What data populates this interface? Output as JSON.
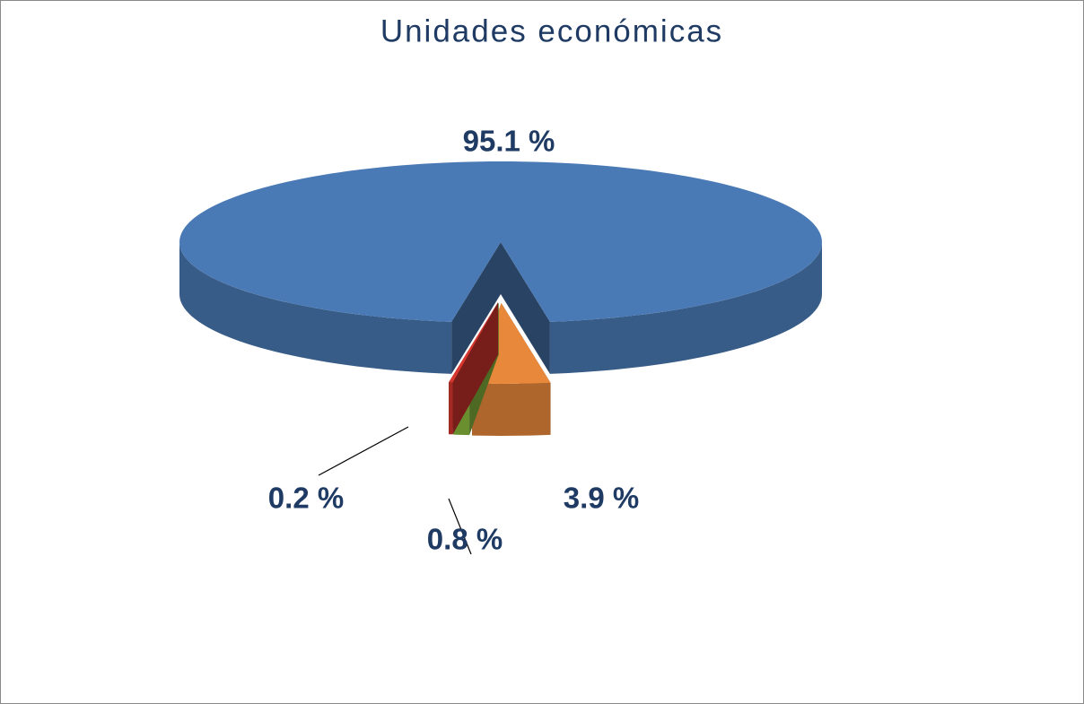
{
  "chart_data": {
    "type": "pie3d",
    "title": "Unidades económicas",
    "values": [
      95.1,
      3.9,
      0.8,
      0.2
    ],
    "value_labels": [
      "95.1 %",
      "3.9 %",
      "0.8 %",
      "0.2 %"
    ],
    "colors": [
      "#4a7ab5",
      "#e8883a",
      "#8cbf3f",
      "#d9362f"
    ]
  }
}
